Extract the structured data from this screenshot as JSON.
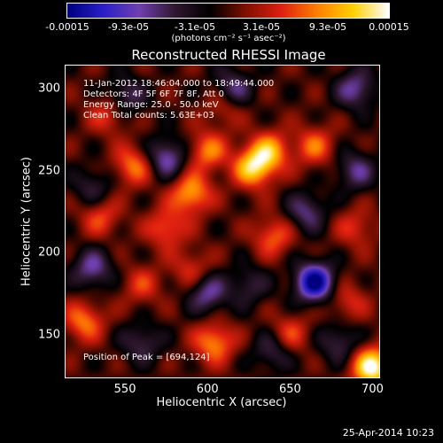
{
  "chart_data": {
    "type": "heatmap",
    "title": "Reconstructed RHESSI Image",
    "xlabel": "Heliocentric X (arcsec)",
    "ylabel": "Heliocentric Y (arcsec)",
    "xlim": [
      514,
      704
    ],
    "ylim": [
      124,
      314
    ],
    "x_ticks": [
      "550",
      "600",
      "650",
      "700"
    ],
    "x_tick_values": [
      550,
      600,
      650,
      700
    ],
    "y_ticks": [
      "300",
      "250",
      "200",
      "150"
    ],
    "y_tick_values": [
      300,
      250,
      200,
      150
    ],
    "colorbar": {
      "ticks": [
        "-0.00015",
        "-9.3e-05",
        "-3.1e-05",
        "3.1e-05",
        "9.3e-05",
        "0.00015"
      ],
      "tick_values": [
        -0.00015,
        -9.3e-05,
        -3.1e-05,
        3.1e-05,
        9.3e-05,
        0.00015
      ],
      "range": [
        -0.00015,
        0.00015
      ],
      "units": "(photons cm⁻² s⁻¹ asec⁻²)",
      "colormap": [
        "#000080",
        "#2a20c8",
        "#7040b0",
        "#301830",
        "#000000",
        "#801000",
        "#e02010",
        "#ff8000",
        "#ffd000",
        "#ffffff"
      ]
    },
    "annotations": {
      "line1": "11-Jan-2012 18:46:04.000 to 18:49:44.000",
      "line2": "Detectors: 4F 5F 6F 7F 8F, Att 0",
      "line3": "Energy Range: 25.0 - 50.0 keV",
      "line4": "Clean     Total counts: 5.63E+03",
      "peak": "Position of Peak = [694,124]"
    },
    "sources": [
      {
        "x": 628,
        "y": 252,
        "value": 0.00012
      },
      {
        "x": 590,
        "y": 236,
        "value": 0.0001
      },
      {
        "x": 638,
        "y": 262,
        "value": 9e-05
      },
      {
        "x": 600,
        "y": 262,
        "value": 8e-05
      },
      {
        "x": 555,
        "y": 253,
        "value": 8e-05
      },
      {
        "x": 665,
        "y": 265,
        "value": 7e-05
      },
      {
        "x": 540,
        "y": 285,
        "value": 6e-05
      },
      {
        "x": 610,
        "y": 290,
        "value": 5e-05
      },
      {
        "x": 640,
        "y": 210,
        "value": 7e-05
      },
      {
        "x": 575,
        "y": 215,
        "value": 7e-05
      },
      {
        "x": 690,
        "y": 215,
        "value": 5e-05
      },
      {
        "x": 560,
        "y": 180,
        "value": 5e-05
      },
      {
        "x": 700,
        "y": 130,
        "value": 0.00015
      },
      {
        "x": 604,
        "y": 145,
        "value": 9e-05
      },
      {
        "x": 525,
        "y": 158,
        "value": 8e-05
      },
      {
        "x": 650,
        "y": 150,
        "value": 6e-05
      },
      {
        "x": 685,
        "y": 170,
        "value": 5e-05
      },
      {
        "x": 590,
        "y": 190,
        "value": 5e-05
      },
      {
        "x": 535,
        "y": 222,
        "value": 6e-05
      },
      {
        "x": 665,
        "y": 182,
        "value": -0.00015
      },
      {
        "x": 575,
        "y": 258,
        "value": -9e-05
      },
      {
        "x": 615,
        "y": 300,
        "value": -8e-05
      },
      {
        "x": 550,
        "y": 295,
        "value": -7e-05
      },
      {
        "x": 660,
        "y": 225,
        "value": -7e-05
      },
      {
        "x": 530,
        "y": 190,
        "value": -8e-05
      },
      {
        "x": 600,
        "y": 175,
        "value": -8e-05
      },
      {
        "x": 690,
        "y": 300,
        "value": -8e-05
      },
      {
        "x": 690,
        "y": 250,
        "value": -7e-05
      },
      {
        "x": 560,
        "y": 145,
        "value": -6e-05
      },
      {
        "x": 640,
        "y": 140,
        "value": -6e-05
      },
      {
        "x": 680,
        "y": 145,
        "value": -6e-05
      },
      {
        "x": 625,
        "y": 180,
        "value": -5e-05
      },
      {
        "x": 530,
        "y": 240,
        "value": -5e-05
      }
    ]
  },
  "footer": {
    "timestamp": "25-Apr-2014 10:23"
  }
}
